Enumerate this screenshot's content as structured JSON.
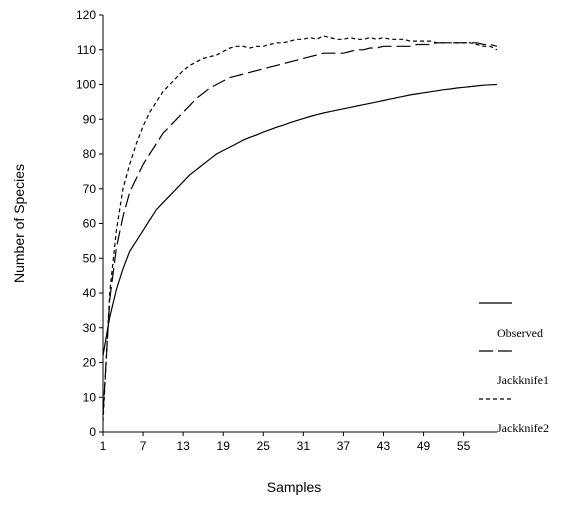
{
  "chart_data": {
    "type": "line",
    "xlabel": "Samples",
    "ylabel": "Number of Species",
    "xlim": [
      1,
      60
    ],
    "ylim": [
      0,
      120
    ],
    "x_ticks": [
      1,
      7,
      13,
      19,
      25,
      31,
      37,
      43,
      49,
      55
    ],
    "y_ticks": [
      0,
      10,
      20,
      30,
      40,
      50,
      60,
      70,
      80,
      90,
      100,
      110,
      120
    ],
    "grid": false,
    "legend_position": "right",
    "x": [
      1,
      2,
      3,
      4,
      5,
      6,
      7,
      8,
      9,
      10,
      11,
      12,
      13,
      14,
      15,
      16,
      17,
      18,
      19,
      20,
      21,
      22,
      23,
      24,
      25,
      26,
      27,
      28,
      29,
      30,
      31,
      32,
      33,
      34,
      35,
      36,
      37,
      38,
      39,
      40,
      41,
      42,
      43,
      44,
      45,
      46,
      47,
      48,
      49,
      50,
      51,
      52,
      53,
      54,
      55,
      56,
      57,
      58,
      59,
      60
    ],
    "series": [
      {
        "name": "Observed",
        "style": "solid",
        "values": [
          22,
          33,
          41,
          47,
          52,
          55,
          58,
          61,
          64,
          66,
          68,
          70,
          72,
          74,
          75.5,
          77,
          78.5,
          80,
          81,
          82,
          83,
          84,
          84.8,
          85.5,
          86.3,
          87,
          87.7,
          88.3,
          89,
          89.6,
          90.2,
          90.8,
          91.3,
          91.8,
          92.2,
          92.6,
          93,
          93.4,
          93.8,
          94.2,
          94.6,
          95,
          95.4,
          95.8,
          96.2,
          96.6,
          97,
          97.3,
          97.6,
          97.9,
          98.2,
          98.5,
          98.7,
          99,
          99.2,
          99.4,
          99.6,
          99.8,
          99.9,
          100
        ]
      },
      {
        "name": "Jackknife1",
        "style": "dashed",
        "values": [
          5,
          38,
          53,
          62,
          69,
          73,
          77,
          80,
          83,
          86,
          88,
          90,
          92,
          94,
          96,
          97.5,
          99,
          100,
          101,
          102,
          102.5,
          103,
          103.5,
          104,
          104.5,
          105,
          105.5,
          106,
          106.5,
          107,
          107.5,
          108,
          108.5,
          109,
          109,
          109,
          109,
          109.5,
          110,
          110,
          110.5,
          110.5,
          111,
          111,
          111,
          111,
          111,
          111.5,
          111.5,
          111.5,
          112,
          112,
          112,
          112,
          112,
          112,
          112,
          111.5,
          111.5,
          111
        ]
      },
      {
        "name": "Jackknife2",
        "style": "dotted",
        "values": [
          3,
          40,
          58,
          70,
          77,
          83,
          88,
          92,
          95,
          98,
          100,
          102,
          104,
          105.5,
          106.5,
          107.5,
          108,
          108.5,
          109.5,
          110.5,
          111,
          111,
          110.5,
          111,
          111,
          111.5,
          112,
          112,
          112.5,
          113,
          113,
          113.5,
          113,
          114,
          113.5,
          113,
          113,
          113.5,
          113,
          113,
          113.5,
          113,
          113.5,
          113,
          113,
          113,
          112.5,
          112.5,
          112.5,
          112.5,
          112,
          112,
          112,
          112,
          112,
          112,
          111.5,
          111,
          111,
          110
        ]
      }
    ]
  }
}
